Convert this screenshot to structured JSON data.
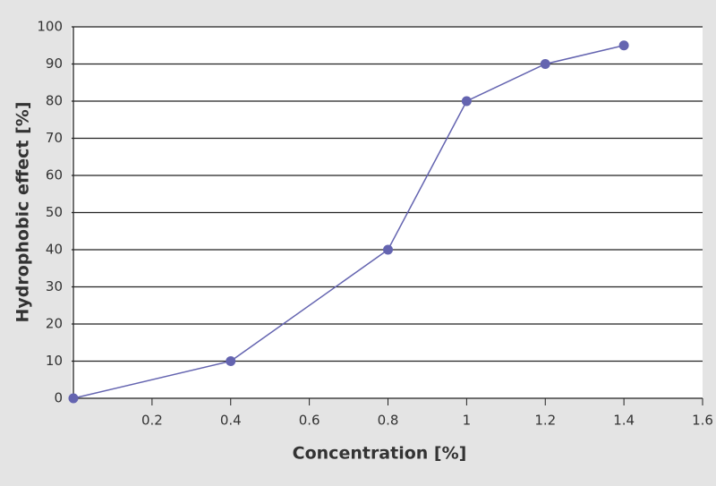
{
  "chart_data": {
    "type": "line",
    "x_label": "Concentration [%]",
    "y_label": "Hydrophobic effect [%]",
    "x": [
      0,
      0.4,
      0.8,
      1,
      1.2,
      1.4
    ],
    "series": [
      {
        "color": "#6464b0",
        "values": [
          0,
          10,
          40,
          80,
          90,
          95
        ]
      }
    ],
    "xlim": [
      0,
      1.6
    ],
    "xticks": [
      0.2,
      0.4,
      0.6,
      0.8,
      1,
      1.2,
      1.4,
      1.6
    ],
    "ylim": [
      0,
      100
    ],
    "yticks": [
      0,
      10,
      20,
      30,
      40,
      50,
      60,
      70,
      80,
      90,
      100
    ],
    "grid": true
  }
}
